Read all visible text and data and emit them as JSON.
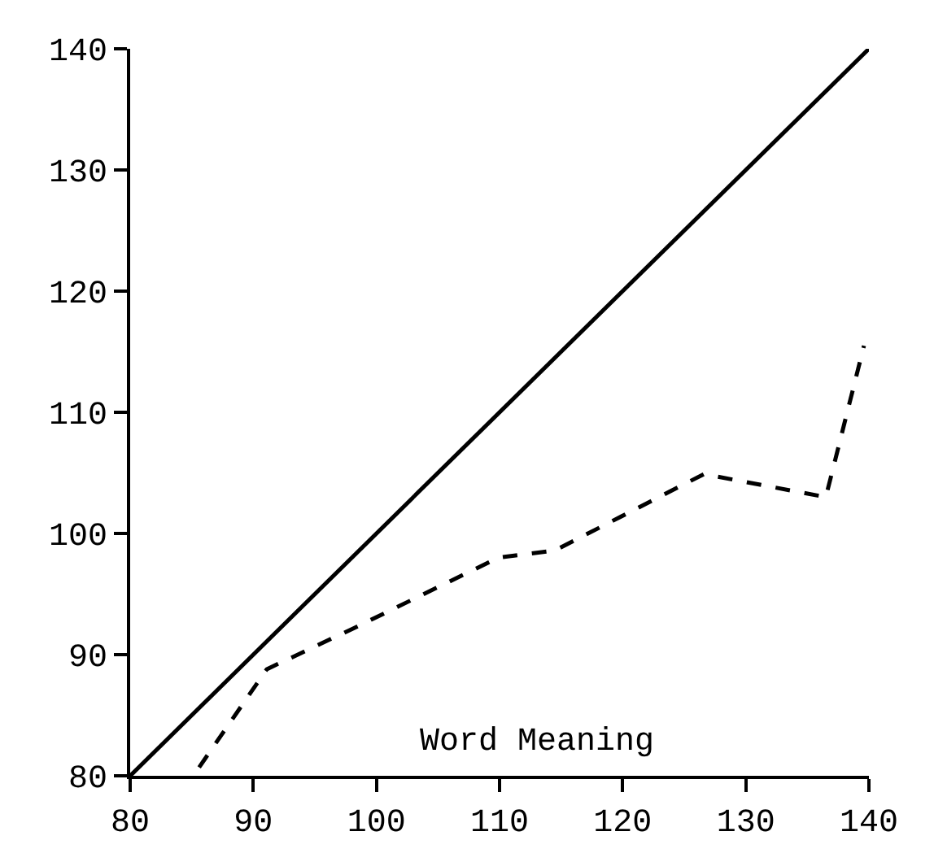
{
  "chart_data": {
    "type": "line",
    "xlabel": "Word Meaning",
    "series": [
      {
        "color": "#000000",
        "x": [
          80,
          140
        ],
        "values": [
          80,
          140
        ],
        "line_style": "solid"
      },
      {
        "color": "#000000",
        "x": [
          85.6,
          91.1,
          98.2,
          109.9,
          114.5,
          126.6,
          136.5,
          139.6
        ],
        "values": [
          80.7,
          88.8,
          92.2,
          98.0,
          98.6,
          104.9,
          103.0,
          115.5
        ],
        "line_style": "dashed"
      }
    ],
    "xlim": [
      80,
      140
    ],
    "ylim": [
      80,
      140
    ],
    "xticks": [
      80,
      90,
      100,
      110,
      120,
      130,
      140
    ],
    "yticks": [
      80,
      90,
      100,
      110,
      120,
      130,
      140
    ],
    "grid": false,
    "marker": "none"
  }
}
